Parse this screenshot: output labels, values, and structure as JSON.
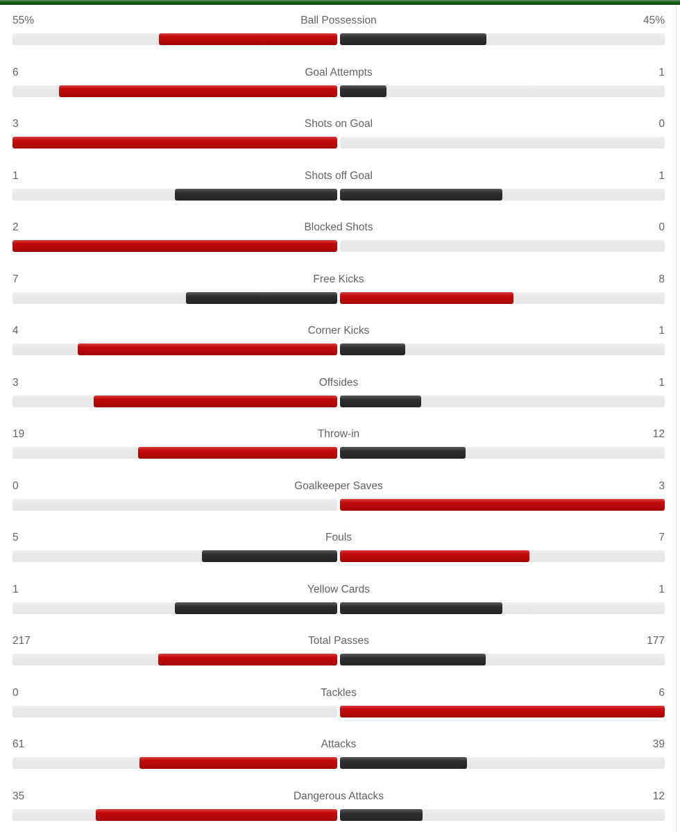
{
  "panel": {
    "description": "Soccer match statistics panel with paired horizontal bars (home team left, away team right)"
  },
  "colors": {
    "accent_green_top": "#68946a",
    "accent_green": "#186118",
    "accent_green_dark": "#0a500a",
    "bar_red": "#c40a0a",
    "bar_dark": "#2e2e2e",
    "track": "#e9e9e9",
    "text": "#636363",
    "side_border": "#dddddd"
  },
  "chart_data": {
    "type": "bar",
    "orientation": "horizontal-paired",
    "title": "",
    "categories": [
      "Ball Possession",
      "Goal Attempts",
      "Shots on Goal",
      "Shots off Goal",
      "Blocked Shots",
      "Free Kicks",
      "Corner Kicks",
      "Offsides",
      "Throw-in",
      "Goalkeeper Saves",
      "Fouls",
      "Yellow Cards",
      "Total Passes",
      "Tackles",
      "Attacks",
      "Dangerous Attacks"
    ],
    "series": [
      {
        "name": "home",
        "values": [
          "55%",
          "6",
          "3",
          "1",
          "2",
          "7",
          "4",
          "3",
          "19",
          "0",
          "5",
          "1",
          "217",
          "0",
          "61",
          "35"
        ]
      },
      {
        "name": "away",
        "values": [
          "45%",
          "1",
          "0",
          "1",
          "0",
          "8",
          "1",
          "1",
          "12",
          "3",
          "7",
          "1",
          "177",
          "6",
          "39",
          "12"
        ]
      }
    ],
    "bar_rule": "bar length = value / (home+away) of each half track; red = higher value, dark gray = lower or tied value; zero = no bar",
    "legend": "none",
    "grid": "off"
  }
}
